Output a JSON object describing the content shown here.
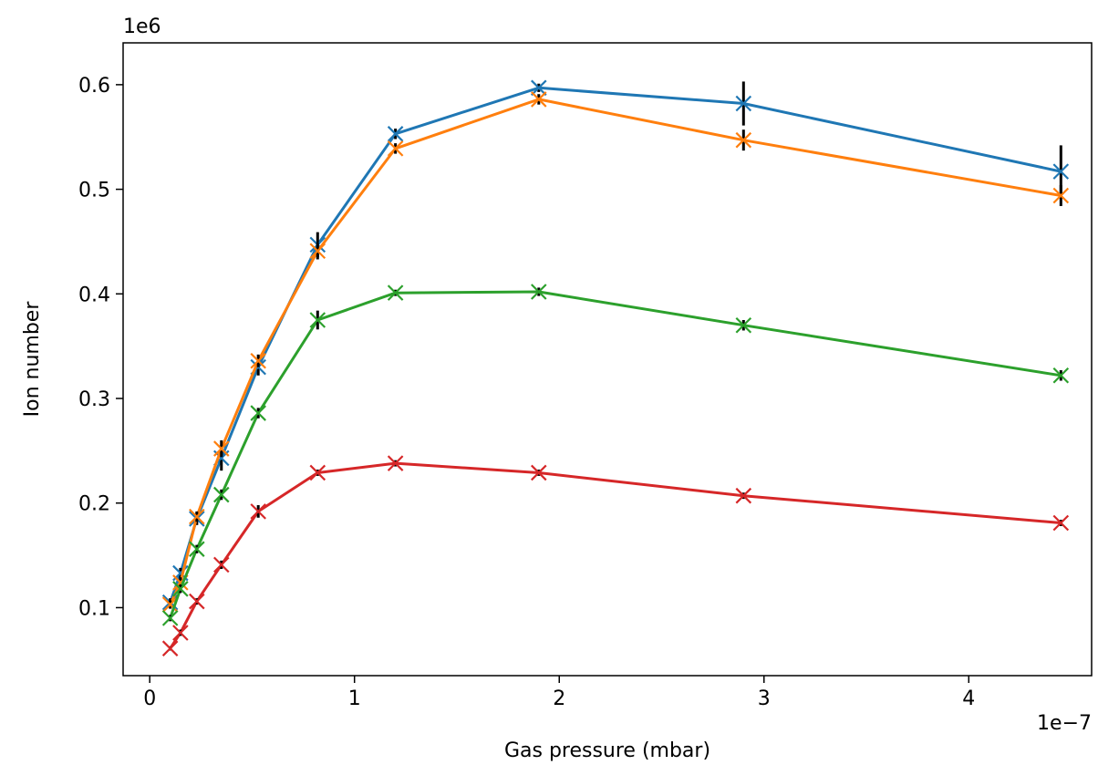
{
  "chart_data": {
    "type": "line",
    "xlabel": "Gas pressure (mbar)",
    "ylabel": "Ion number",
    "x_offset_label": "1e−7",
    "y_offset_label": "1e6",
    "xlim": [
      -0.13,
      4.6
    ],
    "ylim": [
      0.035,
      0.64
    ],
    "xticks": [
      0,
      1,
      2,
      3,
      4
    ],
    "xtick_labels": [
      "0",
      "1",
      "2",
      "3",
      "4"
    ],
    "yticks": [
      0.1,
      0.2,
      0.3,
      0.4,
      0.5,
      0.6
    ],
    "ytick_labels": [
      "0.1",
      "0.2",
      "0.3",
      "0.4",
      "0.5",
      "0.6"
    ],
    "grid": false,
    "marker": "x",
    "x": [
      0.1,
      0.15,
      0.23,
      0.35,
      0.53,
      0.82,
      1.2,
      1.9,
      2.9,
      4.45
    ],
    "series": [
      {
        "color": "#1f77b4",
        "values": [
          0.105,
          0.133,
          0.185,
          0.243,
          0.33,
          0.447,
          0.553,
          0.597,
          0.582,
          0.517
        ],
        "errors": [
          0.004,
          0.005,
          0.006,
          0.012,
          0.008,
          0.012,
          0.005,
          0.004,
          0.021,
          0.025
        ]
      },
      {
        "color": "#ff7f0e",
        "values": [
          0.103,
          0.124,
          0.187,
          0.252,
          0.336,
          0.441,
          0.539,
          0.586,
          0.547,
          0.494
        ],
        "errors": [
          0.004,
          0.005,
          0.005,
          0.008,
          0.006,
          0.008,
          0.005,
          0.005,
          0.01,
          0.01
        ]
      },
      {
        "color": "#2ca02c",
        "values": [
          0.09,
          0.118,
          0.156,
          0.208,
          0.286,
          0.375,
          0.401,
          0.402,
          0.37,
          0.322
        ],
        "errors": [
          0.003,
          0.004,
          0.004,
          0.005,
          0.005,
          0.009,
          0.003,
          0.004,
          0.005,
          0.005
        ]
      },
      {
        "color": "#d62728",
        "values": [
          0.061,
          0.076,
          0.106,
          0.141,
          0.192,
          0.229,
          0.238,
          0.229,
          0.207,
          0.181
        ],
        "errors": [
          0.002,
          0.003,
          0.003,
          0.004,
          0.006,
          0.003,
          0.003,
          0.003,
          0.003,
          0.003
        ]
      }
    ]
  }
}
